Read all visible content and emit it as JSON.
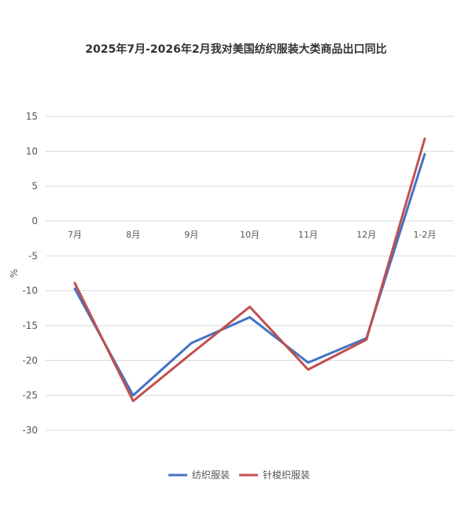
{
  "chart_data": {
    "type": "line",
    "title": "2025年7月-2026年2月我对美国纺织服装大类商品出口同比",
    "ylabel": "%",
    "xlabel": "",
    "ylim": [
      -30,
      15
    ],
    "yticks": [
      15,
      10,
      5,
      0,
      -5,
      -10,
      -15,
      -20,
      -25,
      -30
    ],
    "categories": [
      "7月",
      "8月",
      "9月",
      "10月",
      "11月",
      "12月",
      "1-2月"
    ],
    "grid": true,
    "legend_position": "bottom",
    "series": [
      {
        "name": "纺织服装",
        "color": "#4472C4",
        "values": [
          -9.7,
          -25.0,
          -17.5,
          -13.8,
          -20.3,
          -16.8,
          9.6
        ]
      },
      {
        "name": "针梭织服装",
        "color": "#C0504D",
        "values": [
          -8.9,
          -25.8,
          -19.0,
          -12.3,
          -21.3,
          -17.0,
          11.8
        ]
      }
    ]
  }
}
